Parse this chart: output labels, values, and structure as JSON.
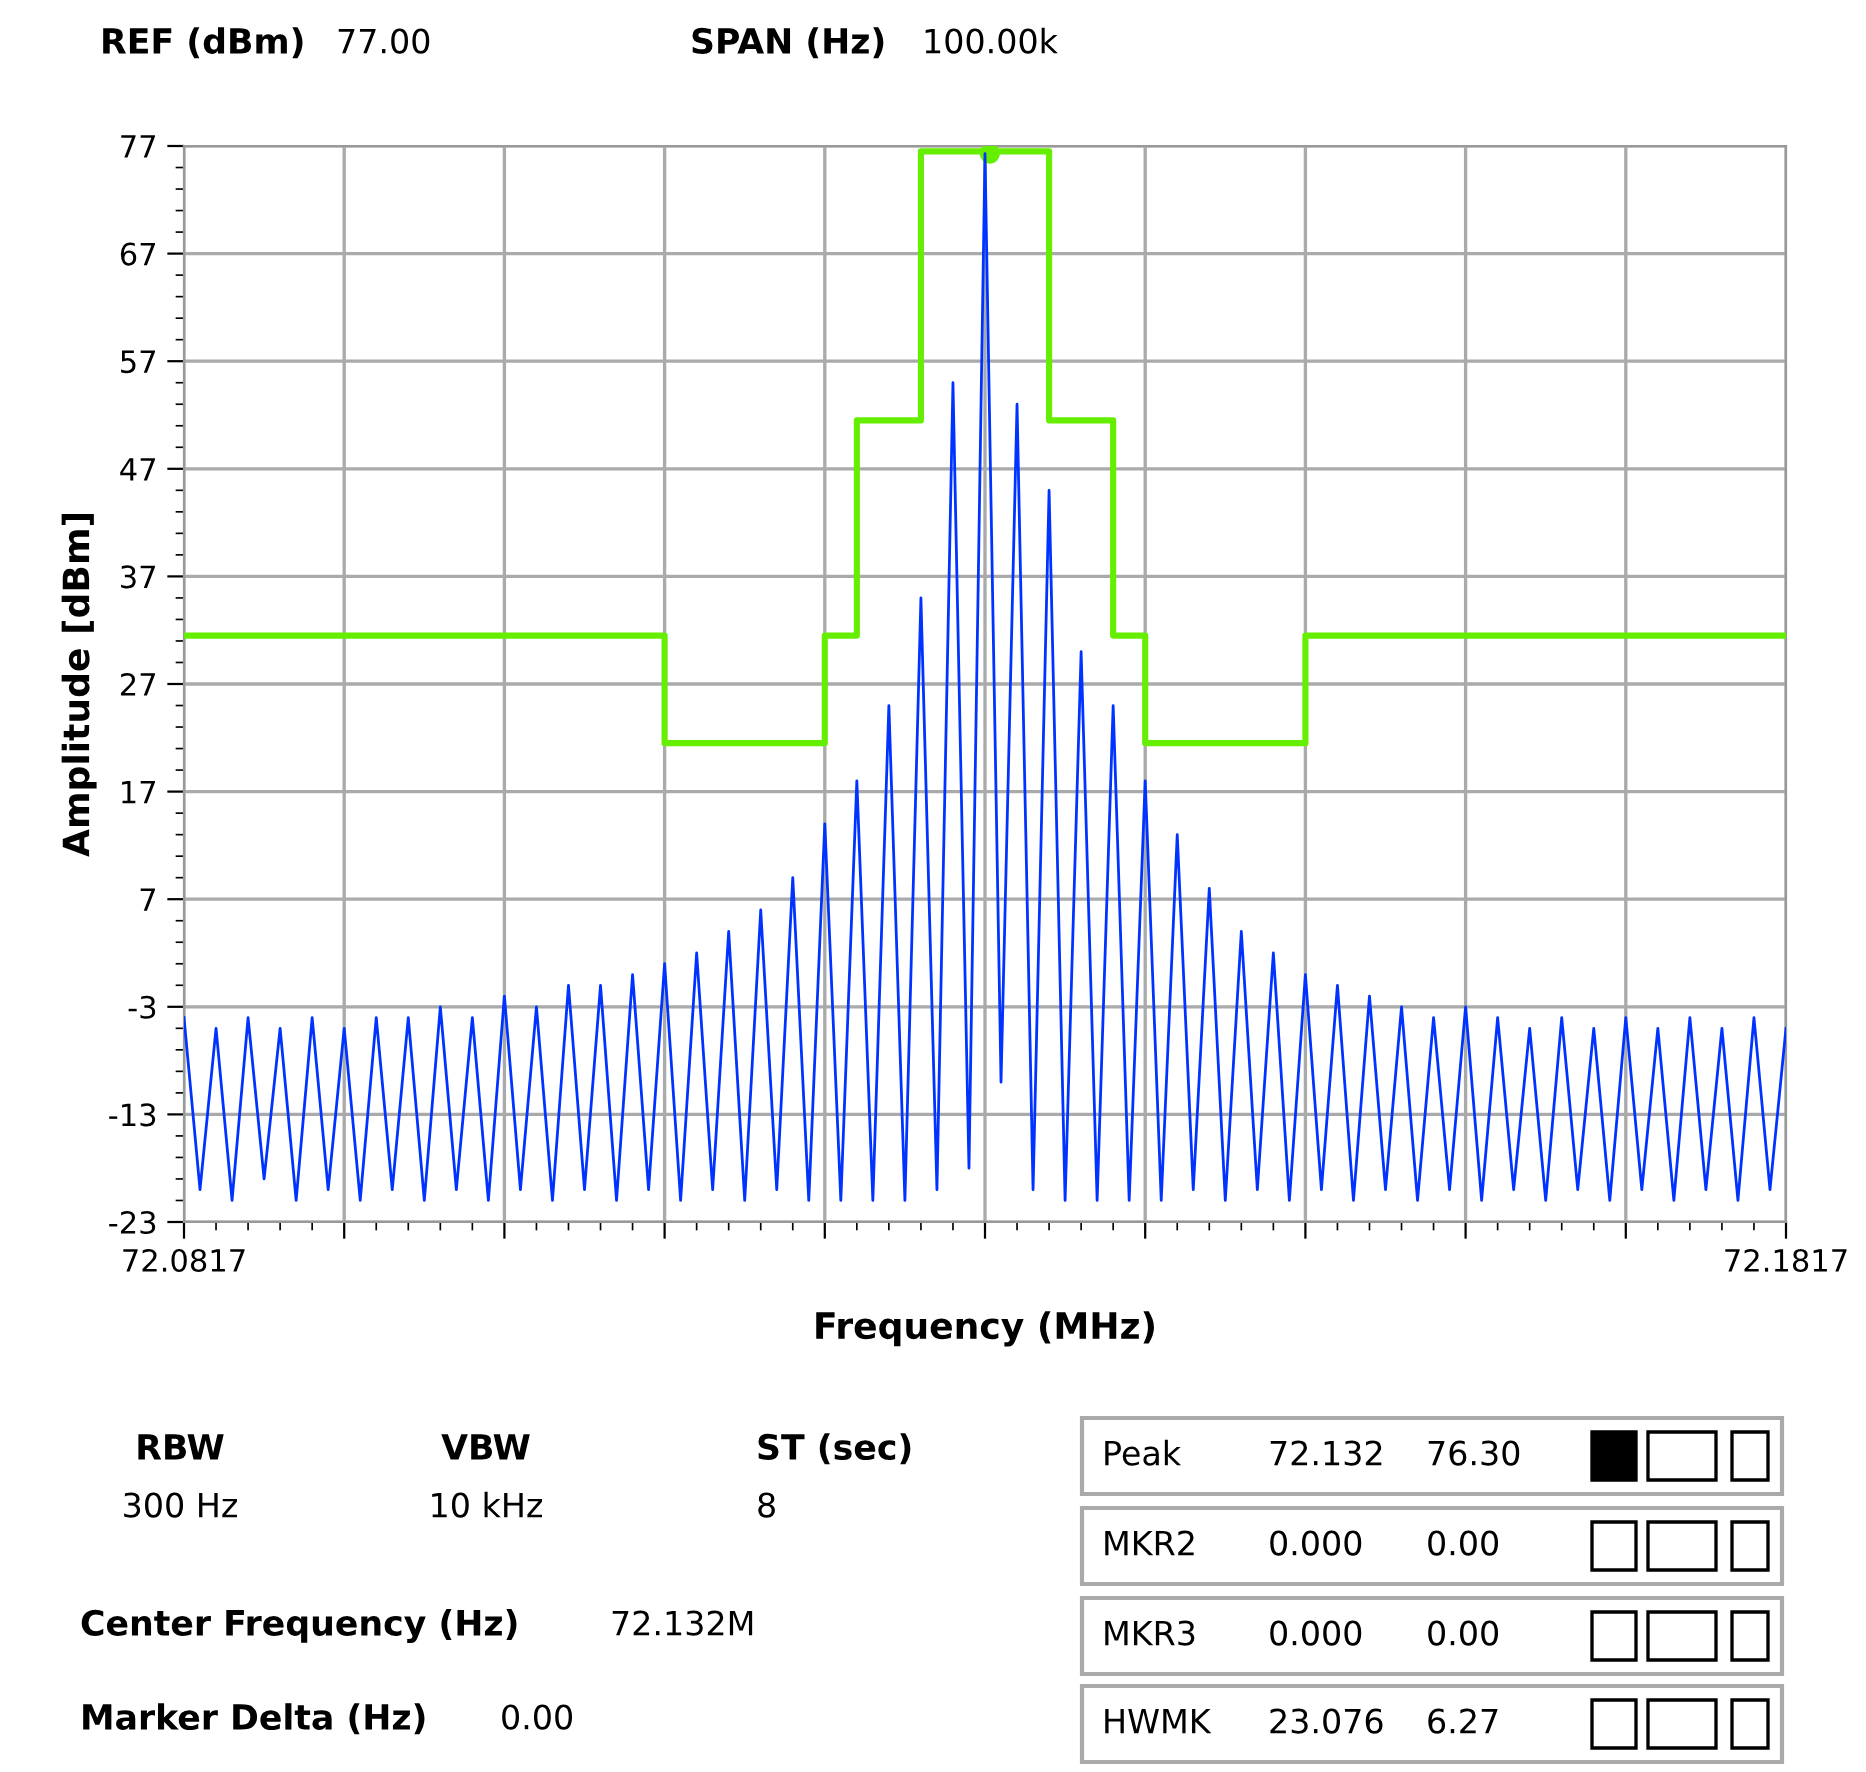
{
  "chart_data": {
    "type": "line",
    "xlabel": "Frequency (MHz)",
    "ylabel": "Amplitude [dBm]",
    "xlim": [
      72.0817,
      72.1817
    ],
    "xticks": [
      {
        "value": 72.0817,
        "label": "72.0817"
      },
      {
        "value": 72.0917,
        "label": null
      },
      {
        "value": 72.1017,
        "label": null
      },
      {
        "value": 72.1117,
        "label": null
      },
      {
        "value": 72.1217,
        "label": null
      },
      {
        "value": 72.1317,
        "label": null
      },
      {
        "value": 72.1417,
        "label": null
      },
      {
        "value": 72.1517,
        "label": null
      },
      {
        "value": 72.1617,
        "label": null
      },
      {
        "value": 72.1717,
        "label": null
      },
      {
        "value": 72.1817,
        "label": "72.1817"
      }
    ],
    "ylim": [
      -23,
      77
    ],
    "yticks": [
      -23,
      -13,
      -3,
      7,
      17,
      27,
      37,
      47,
      57,
      67,
      77
    ],
    "grid": true,
    "series": [
      {
        "color": "#0033ff",
        "x": [
          72.0817,
          72.0827,
          72.0837,
          72.0847,
          72.0857,
          72.0867,
          72.0877,
          72.0887,
          72.0897,
          72.0907,
          72.0917,
          72.0927,
          72.0937,
          72.0947,
          72.0957,
          72.0967,
          72.0977,
          72.0987,
          72.0997,
          72.1007,
          72.1017,
          72.1027,
          72.1037,
          72.1047,
          72.1057,
          72.1067,
          72.1077,
          72.1087,
          72.1097,
          72.1107,
          72.1117,
          72.1127,
          72.1137,
          72.1147,
          72.1157,
          72.1167,
          72.1177,
          72.1187,
          72.1197,
          72.1207,
          72.1217,
          72.1227,
          72.1237,
          72.1247,
          72.1257,
          72.1267,
          72.1277,
          72.1287,
          72.1297,
          72.1307,
          72.1317,
          72.1327,
          72.1337,
          72.1347,
          72.1357,
          72.1367,
          72.1377,
          72.1387,
          72.1397,
          72.1407,
          72.1417,
          72.1427,
          72.1437,
          72.1447,
          72.1457,
          72.1467,
          72.1477,
          72.1487,
          72.1497,
          72.1507,
          72.1517,
          72.1527,
          72.1537,
          72.1547,
          72.1557,
          72.1567,
          72.1577,
          72.1587,
          72.1597,
          72.1607,
          72.1617,
          72.1627,
          72.1637,
          72.1647,
          72.1657,
          72.1667,
          72.1677,
          72.1687,
          72.1697,
          72.1707,
          72.1717,
          72.1727,
          72.1737,
          72.1747,
          72.1757,
          72.1767,
          72.1777,
          72.1787,
          72.1797,
          72.1807,
          72.1817
        ],
        "values": [
          -4,
          -20,
          -5,
          -21,
          -4,
          -19,
          -5,
          -21,
          -4,
          -20,
          -5,
          -21,
          -4,
          -20,
          -4,
          -21,
          -3,
          -20,
          -4,
          -21,
          -2,
          -20,
          -3,
          -21,
          -1,
          -20,
          -1,
          -21,
          0,
          -20,
          1,
          -21,
          2,
          -20,
          4,
          -21,
          6,
          -20,
          9,
          -21,
          14,
          -21,
          18,
          -21,
          25,
          -21,
          35,
          -20,
          55,
          -18,
          76.3,
          -10,
          53,
          -20,
          45,
          -21,
          30,
          -21,
          25,
          -21,
          18,
          -21,
          13,
          -20,
          8,
          -21,
          4,
          -20,
          2,
          -21,
          0,
          -20,
          -1,
          -21,
          -2,
          -20,
          -3,
          -21,
          -4,
          -20,
          -3,
          -21,
          -4,
          -20,
          -5,
          -21,
          -4,
          -20,
          -5,
          -21,
          -4,
          -20,
          -5,
          -21,
          -4,
          -20,
          -5,
          -21,
          -4,
          -20,
          -5
        ]
      },
      {
        "type": "step",
        "color": "#66ee00",
        "x": [
          72.0817,
          72.1117,
          72.1217,
          72.1237,
          72.1277,
          72.1357,
          72.1397,
          72.1417,
          72.1517,
          72.1817
        ],
        "values": [
          31.5,
          21.5,
          31.5,
          51.5,
          76.5,
          51.5,
          31.5,
          21.5,
          31.5,
          31.5
        ]
      },
      {
        "type": "scatter",
        "color": "#66ee00",
        "marker": "circle",
        "x": [
          72.132
        ],
        "values": [
          76.3
        ]
      }
    ],
    "annotations": [
      "REF (dBm)",
      "77.00",
      "SPAN (Hz)",
      "100.00k",
      "RBW",
      "300 Hz",
      "VBW",
      "10 kHz",
      "ST (sec)",
      "8",
      "Center Frequency (Hz)",
      "72.132M",
      "Marker Delta (Hz)",
      "0.00",
      "Peak",
      "72.132",
      "76.30",
      "MKR2",
      "0.000",
      "0.00",
      "MKR3",
      "0.000",
      "0.00",
      "HWMK",
      "23.076",
      "6.27"
    ]
  }
}
